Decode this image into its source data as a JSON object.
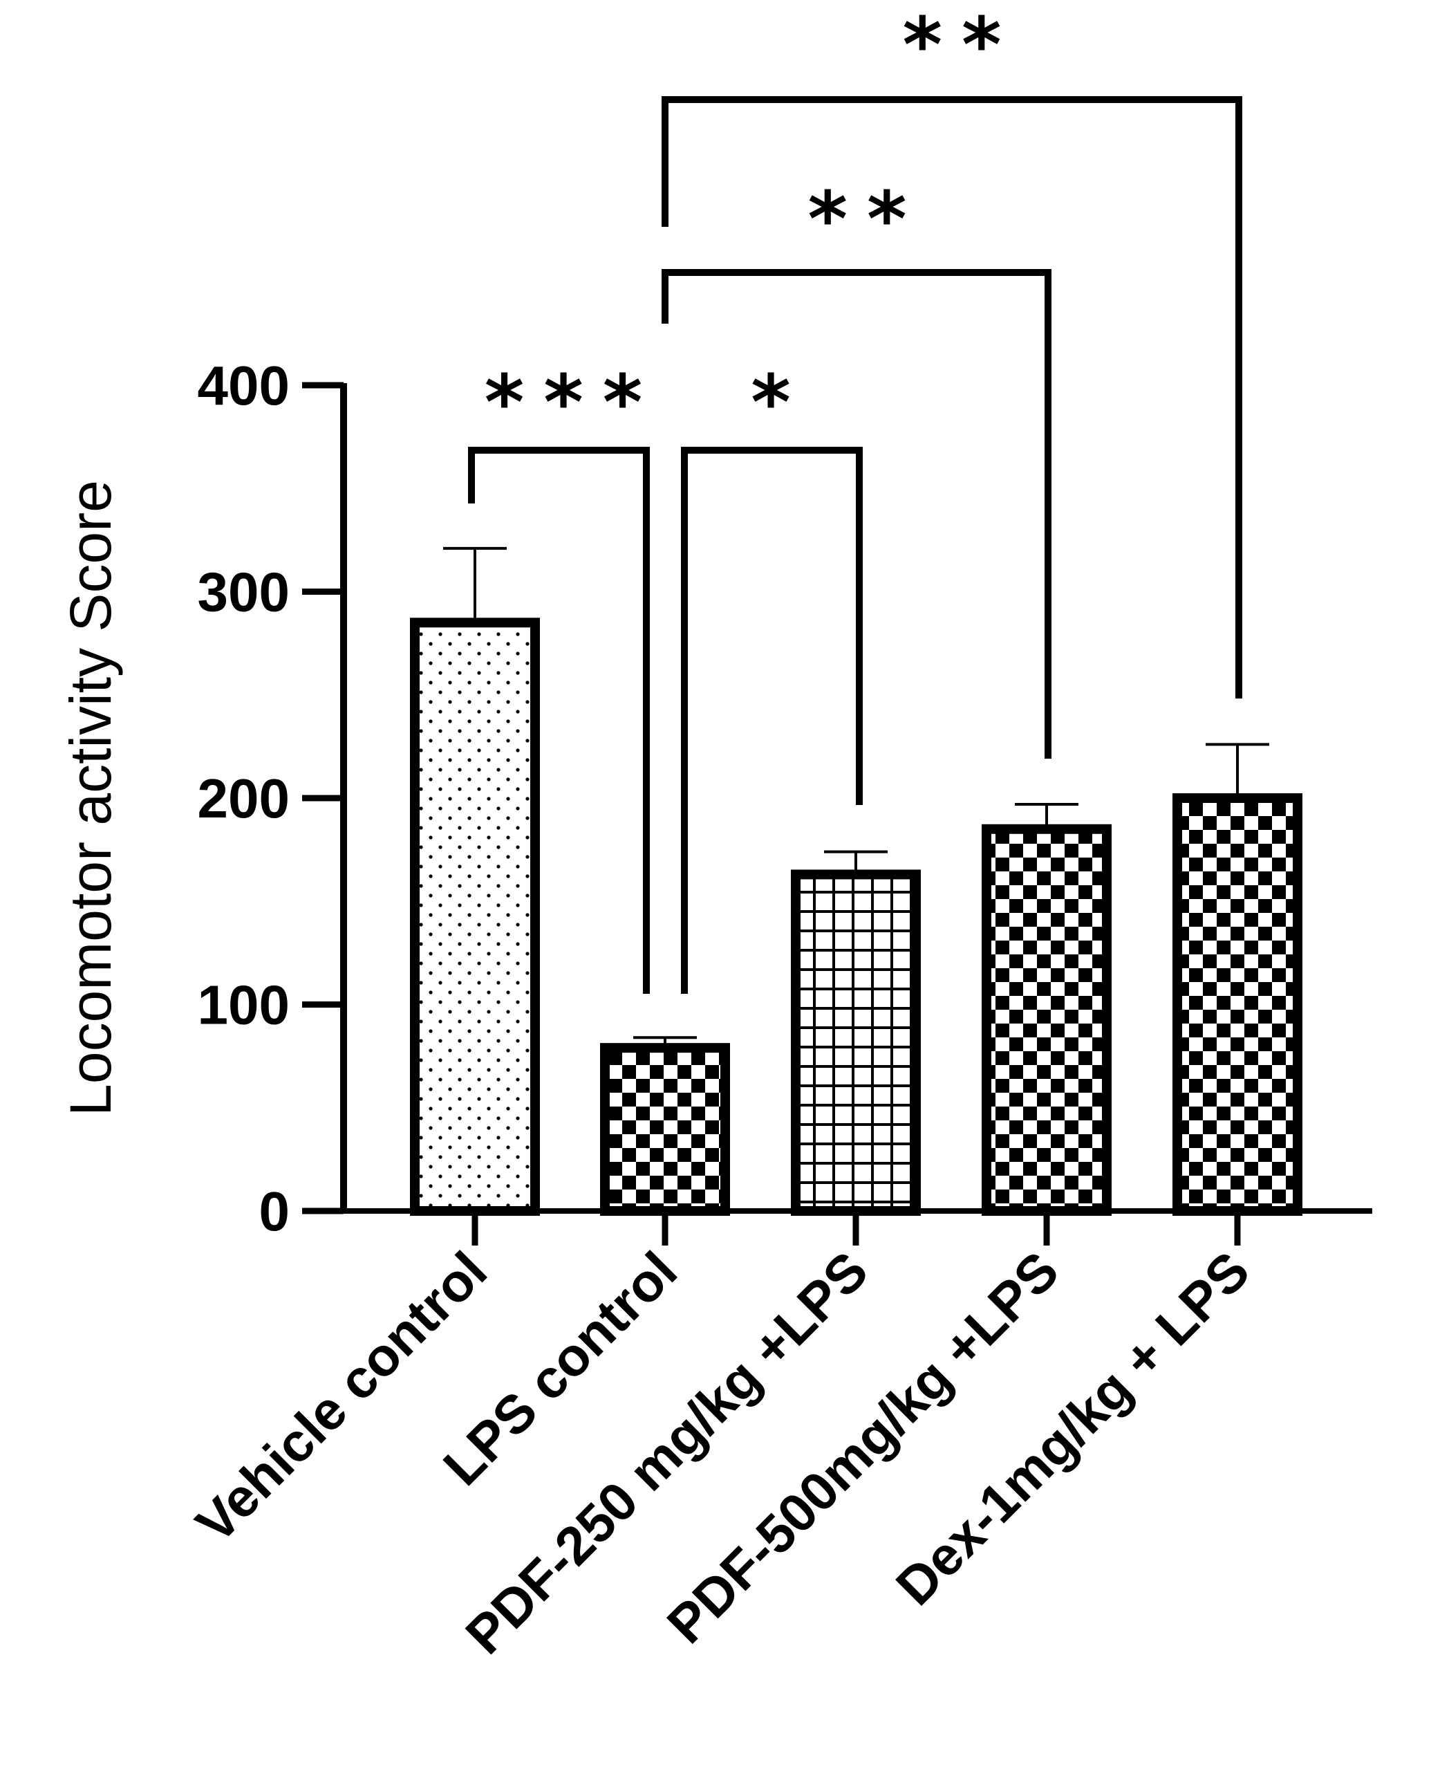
{
  "chart_data": {
    "type": "bar",
    "ylabel": "Locomotor activity Score",
    "ylim": [
      0,
      400
    ],
    "yticks": [
      "0",
      "100",
      "200",
      "300",
      "400"
    ],
    "categories": [
      "Vehicle control",
      "LPS control",
      "PDF-250 mg/kg +LPS",
      "PDF-500mg/kg +LPS",
      "Dex-1mg/kg + LPS"
    ],
    "values": [
      285,
      79,
      163,
      185,
      200
    ],
    "errors": [
      36,
      5,
      11,
      12,
      26
    ],
    "patterns": [
      "dots",
      "checker",
      "grid",
      "checker",
      "checker"
    ],
    "significance": [
      {
        "from": 0,
        "to": 1,
        "label": "***"
      },
      {
        "from": 1,
        "to": 2,
        "label": "*"
      },
      {
        "from": 1,
        "to": 3,
        "label": "**"
      },
      {
        "from": 1,
        "to": 4,
        "label": "**"
      }
    ],
    "colors": {
      "stroke": "#000000",
      "fill": "#ffffff"
    }
  }
}
